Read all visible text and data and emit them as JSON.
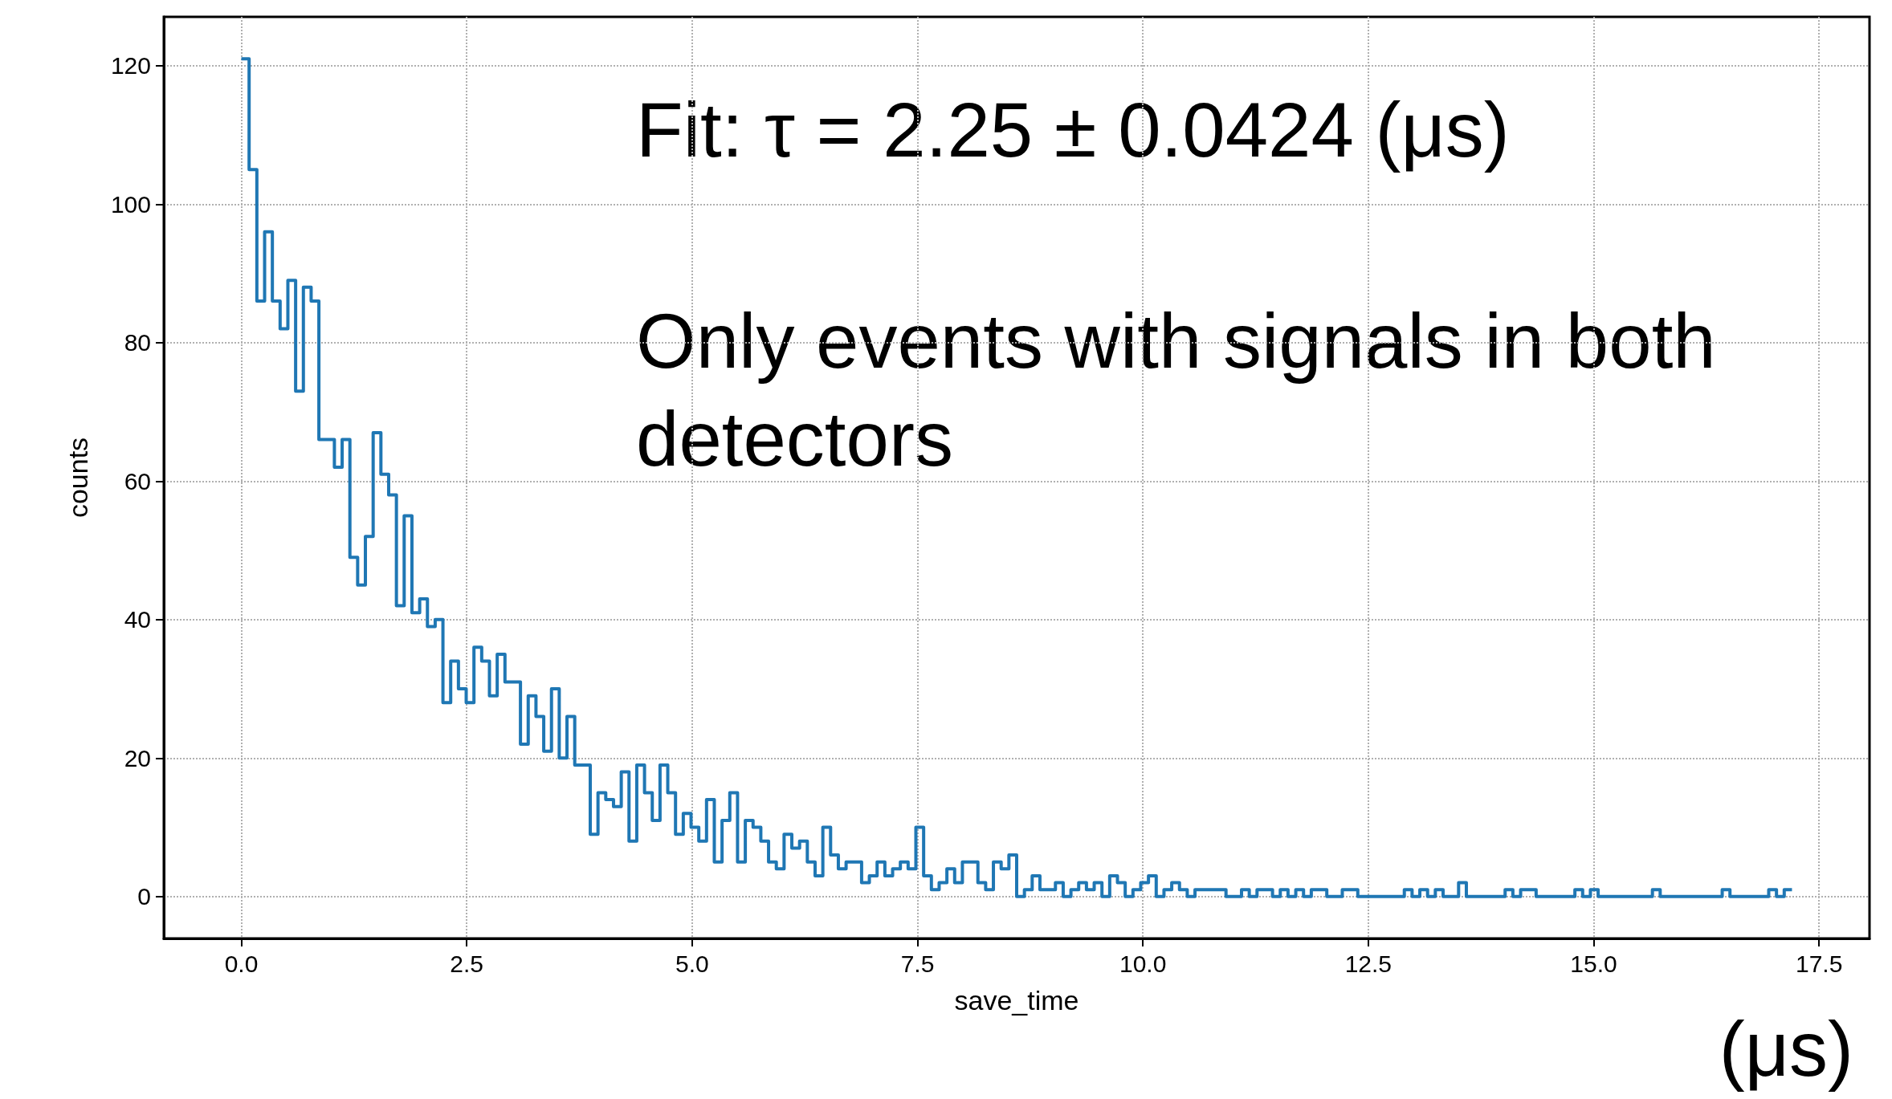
{
  "chart_data": {
    "type": "histogram",
    "xlabel": "save_time",
    "ylabel": "counts",
    "annotations": [
      "Fit: τ = 2.25 ± 0.0424 (μs)",
      "Only events with signals in both detectors",
      "(μs)"
    ],
    "color": "#1f77b4",
    "bins": [
      0,
      0.086,
      0.172,
      0.258,
      0.344,
      0.43,
      0.516,
      0.602,
      0.688,
      0.774,
      0.86,
      0.946,
      1.032,
      1.118,
      1.204,
      1.29,
      1.376,
      1.462,
      1.548,
      1.634,
      1.72,
      1.806,
      1.892,
      1.978,
      2.064,
      2.15,
      2.236,
      2.322,
      2.408,
      2.494,
      2.58,
      2.666,
      2.752,
      2.838,
      2.924,
      3.01,
      3.096,
      3.182,
      3.268,
      3.354,
      3.44,
      3.526,
      3.612,
      3.698,
      3.784,
      3.87,
      3.956,
      4.042,
      4.128,
      4.214,
      4.3,
      4.386,
      4.472,
      4.558,
      4.644,
      4.73,
      4.816,
      4.902,
      4.988,
      5.074,
      5.16,
      5.246,
      5.332,
      5.418,
      5.504,
      5.59,
      5.676,
      5.762,
      5.848,
      5.934,
      6.02,
      6.106,
      6.192,
      6.278,
      6.364,
      6.45,
      6.536,
      6.622,
      6.708,
      6.794,
      6.88,
      6.966,
      7.052,
      7.138,
      7.224,
      7.31,
      7.396,
      7.482,
      7.568,
      7.654,
      7.74,
      7.826,
      7.912,
      7.998,
      8.084,
      8.17,
      8.256,
      8.342,
      8.428,
      8.514,
      8.6,
      8.686,
      8.772,
      8.858,
      8.944,
      9.03,
      9.116,
      9.202,
      9.288,
      9.374,
      9.46,
      9.546,
      9.632,
      9.718,
      9.804,
      9.89,
      9.976,
      10.062,
      10.148,
      10.234,
      10.32,
      10.406,
      10.492,
      10.578,
      10.664,
      10.75,
      10.836,
      10.922,
      11.008,
      11.094,
      11.18,
      11.266,
      11.352,
      11.438,
      11.524,
      11.61,
      11.696,
      11.782,
      11.868,
      11.954,
      12.04,
      12.126,
      12.212,
      12.298,
      12.384,
      12.47,
      12.556,
      12.642,
      12.728,
      12.814,
      12.9,
      12.986,
      13.072,
      13.158,
      13.244,
      13.33,
      13.416,
      13.502,
      13.588,
      13.674,
      13.76,
      13.846,
      13.932,
      14.018,
      14.104,
      14.19,
      14.276,
      14.362,
      14.448,
      14.534,
      14.62,
      14.706,
      14.792,
      14.878,
      14.964,
      15.05,
      15.136,
      15.222,
      15.308,
      15.394,
      15.48,
      15.566,
      15.652,
      15.738,
      15.824,
      15.91,
      15.996,
      16.082,
      16.168,
      16.254,
      16.34,
      16.426,
      16.512,
      16.598,
      16.684,
      16.77,
      16.856,
      16.942,
      17.028,
      17.114,
      17.2
    ],
    "values": [
      121,
      105,
      86,
      96,
      86,
      82,
      89,
      73,
      88,
      86,
      66,
      66,
      62,
      66,
      49,
      45,
      52,
      67,
      61,
      58,
      42,
      55,
      41,
      43,
      39,
      40,
      28,
      34,
      30,
      28,
      36,
      34,
      29,
      35,
      31,
      31,
      22,
      29,
      26,
      21,
      30,
      20,
      26,
      19,
      19,
      9,
      15,
      14,
      13,
      18,
      8,
      19,
      15,
      11,
      19,
      15,
      9,
      12,
      10,
      8,
      14,
      5,
      11,
      15,
      5,
      11,
      10,
      8,
      5,
      4,
      9,
      7,
      8,
      5,
      3,
      10,
      6,
      4,
      5,
      5,
      2,
      3,
      5,
      3,
      4,
      5,
      4,
      10,
      3,
      1,
      2,
      4,
      2,
      5,
      5,
      2,
      1,
      5,
      4,
      6,
      0,
      1,
      3,
      1,
      1,
      2,
      0,
      1,
      2,
      1,
      2,
      0,
      3,
      2,
      0,
      1,
      2,
      3,
      0,
      1,
      2,
      1,
      0,
      1,
      1,
      1,
      1,
      0,
      0,
      1,
      0,
      1,
      1,
      0,
      1,
      0,
      1,
      0,
      1,
      1,
      0,
      0,
      1,
      1,
      0,
      0,
      0,
      0,
      0,
      0,
      1,
      0,
      1,
      0,
      1,
      0,
      0,
      2,
      0,
      0,
      0,
      0,
      0,
      1,
      0,
      1,
      1,
      0,
      0,
      0,
      0,
      0,
      1,
      0,
      1,
      0,
      0,
      0,
      0,
      0,
      0,
      0,
      1,
      0,
      0,
      0,
      0,
      0,
      0,
      0,
      0,
      1,
      0,
      0,
      0,
      0,
      0,
      1,
      0,
      1
    ],
    "xlim": [
      -0.86,
      18.06
    ],
    "ylim": [
      -6.05,
      127.05
    ],
    "xticks": [
      {
        "value": 0,
        "label": "0.0"
      },
      {
        "value": 2.5,
        "label": "2.5"
      },
      {
        "value": 5,
        "label": "5.0"
      },
      {
        "value": 7.5,
        "label": "7.5"
      },
      {
        "value": 10,
        "label": "10.0"
      },
      {
        "value": 12.5,
        "label": "12.5"
      },
      {
        "value": 15,
        "label": "15.0"
      },
      {
        "value": 17.5,
        "label": "17.5"
      }
    ],
    "yticks": [
      0,
      20,
      40,
      60,
      80,
      100,
      120
    ],
    "grid": true
  }
}
